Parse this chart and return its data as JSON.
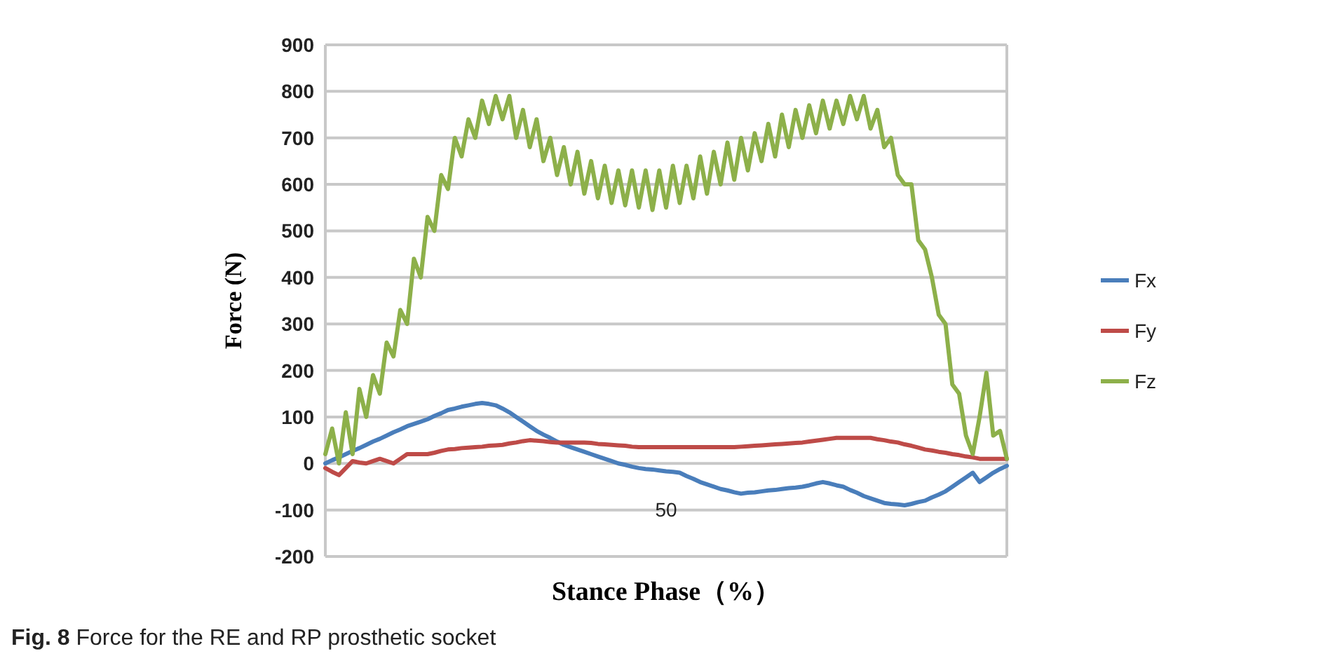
{
  "chart_data": {
    "type": "line",
    "xlabel": "Stance Phase（%）",
    "ylabel": "Force (N)",
    "annotations": [
      "Fig. 8 Force for the RE and RP prosthetic socket"
    ],
    "categories": [
      null,
      null,
      null,
      null,
      null,
      null,
      null,
      null,
      null,
      null,
      null,
      null,
      null,
      null,
      null,
      null,
      null,
      null,
      null,
      null,
      null,
      null,
      null,
      null,
      null,
      null,
      null,
      null,
      null,
      null,
      null,
      null,
      null,
      null,
      null,
      null,
      null,
      null,
      null,
      null,
      null,
      null,
      null,
      null,
      null,
      null,
      null,
      null,
      null,
      null,
      "50",
      null,
      null,
      null,
      null,
      null,
      null,
      null,
      null,
      null,
      null,
      null,
      null,
      null,
      null,
      null,
      null,
      null,
      null,
      null,
      null,
      null,
      null,
      null,
      null,
      null,
      null,
      null,
      null,
      null,
      null,
      null,
      null,
      null,
      null,
      null,
      null,
      null,
      null,
      null,
      null,
      null,
      null,
      null,
      null,
      null,
      null,
      null,
      null,
      null,
      null
    ],
    "ylim": [
      -200,
      900
    ],
    "yticks": [
      -200,
      -100,
      0,
      100,
      200,
      300,
      400,
      500,
      600,
      700,
      800,
      900
    ],
    "grid": "y",
    "legend": "right",
    "series": [
      {
        "name": "Fx",
        "color": "#4a7ebb",
        "values": [
          0,
          7,
          13,
          20,
          27,
          33,
          40,
          47,
          53,
          60,
          67,
          73,
          80,
          85,
          90,
          95,
          102,
          108,
          115,
          118,
          122,
          125,
          128,
          130,
          128,
          125,
          118,
          110,
          100,
          90,
          80,
          70,
          62,
          55,
          47,
          40,
          35,
          30,
          25,
          20,
          15,
          10,
          5,
          0,
          -3,
          -7,
          -10,
          -12,
          -13,
          -15,
          -17,
          -18,
          -20,
          -27,
          -33,
          -40,
          -45,
          -50,
          -55,
          -58,
          -62,
          -65,
          -63,
          -62,
          -60,
          -58,
          -57,
          -55,
          -53,
          -52,
          -50,
          -47,
          -43,
          -40,
          -43,
          -47,
          -50,
          -57,
          -63,
          -70,
          -75,
          -80,
          -85,
          -87,
          -88,
          -90,
          -87,
          -83,
          -80,
          -73,
          -67,
          -60,
          -50,
          -40,
          -30,
          -20,
          -40,
          -30,
          -20,
          -12,
          -5
        ]
      },
      {
        "name": "Fy",
        "color": "#be4b48",
        "values": [
          -10,
          -18,
          -25,
          -10,
          5,
          2,
          0,
          5,
          10,
          5,
          0,
          10,
          20,
          20,
          20,
          20,
          23,
          27,
          30,
          31,
          33,
          34,
          35,
          36,
          38,
          39,
          40,
          43,
          45,
          48,
          50,
          49,
          48,
          46,
          45,
          45,
          45,
          45,
          45,
          44,
          42,
          41,
          40,
          39,
          38,
          36,
          35,
          35,
          35,
          35,
          35,
          35,
          35,
          35,
          35,
          35,
          35,
          35,
          35,
          35,
          35,
          36,
          37,
          38,
          39,
          40,
          41,
          42,
          43,
          44,
          45,
          47,
          49,
          51,
          53,
          55,
          55,
          55,
          55,
          55,
          55,
          52,
          50,
          47,
          45,
          41,
          38,
          34,
          30,
          28,
          25,
          23,
          20,
          18,
          15,
          13,
          10,
          10,
          10,
          10,
          10
        ]
      },
      {
        "name": "Fz",
        "color": "#8db04a",
        "values": [
          20,
          75,
          0,
          110,
          20,
          160,
          100,
          190,
          150,
          260,
          230,
          330,
          300,
          440,
          400,
          530,
          500,
          620,
          590,
          700,
          660,
          740,
          700,
          780,
          730,
          790,
          740,
          790,
          700,
          760,
          680,
          740,
          650,
          700,
          620,
          680,
          600,
          670,
          580,
          650,
          570,
          640,
          560,
          630,
          555,
          630,
          550,
          630,
          545,
          630,
          550,
          640,
          560,
          640,
          570,
          660,
          580,
          670,
          600,
          690,
          610,
          700,
          630,
          710,
          650,
          730,
          660,
          750,
          680,
          760,
          700,
          770,
          710,
          780,
          720,
          780,
          730,
          790,
          740,
          790,
          720,
          760,
          680,
          700,
          620,
          600,
          600,
          480,
          460,
          400,
          320,
          300,
          170,
          150,
          60,
          20,
          100,
          195,
          60,
          70,
          10
        ]
      }
    ]
  }
}
